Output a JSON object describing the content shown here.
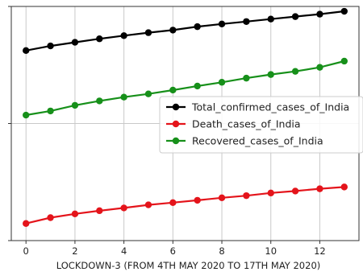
{
  "chart_data": {
    "type": "line",
    "title": "",
    "xlabel": "LOCKDOWN-3 (FROM 4TH MAY 2020 TO 17TH MAY 2020)",
    "ylabel": "",
    "y_scale": "log",
    "grid": true,
    "legend_position": "right",
    "x": [
      0,
      1,
      2,
      3,
      4,
      5,
      6,
      7,
      8,
      9,
      10,
      11,
      12,
      13
    ],
    "x_ticks": [
      "0",
      "2",
      "4",
      "6",
      "8",
      "10",
      "12"
    ],
    "xlim": [
      -0.6,
      13.6
    ],
    "ylim": [
      1000,
      100000
    ],
    "y_ticks": [
      1000,
      10000,
      100000
    ],
    "series": [
      {
        "name": "Total_confirmed_cases_of_India",
        "color": "#000000",
        "values": [
          42000,
          46000,
          49400,
          52900,
          56300,
          59700,
          62800,
          67200,
          70800,
          74300,
          78000,
          81900,
          85900,
          90900
        ]
      },
      {
        "name": "Death_cases_of_India",
        "color": "#e4141b",
        "values": [
          1400,
          1570,
          1690,
          1800,
          1900,
          2020,
          2110,
          2210,
          2320,
          2420,
          2550,
          2650,
          2770,
          2870
        ]
      },
      {
        "name": "Recovered_cases_of_India",
        "color": "#17901a",
        "values": [
          11800,
          12800,
          14300,
          15600,
          16800,
          17900,
          19300,
          20900,
          22500,
          24400,
          26200,
          27900,
          30200,
          34100
        ]
      }
    ]
  }
}
